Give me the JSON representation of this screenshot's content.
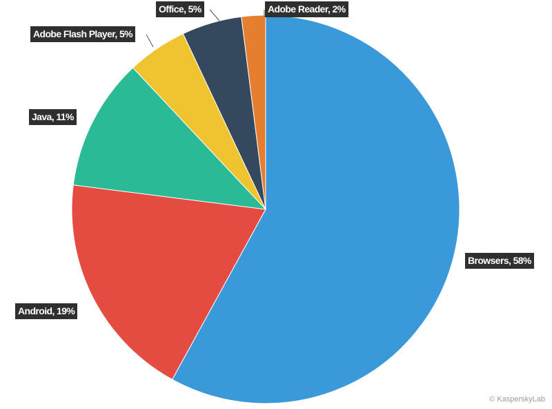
{
  "chart_data": {
    "type": "pie",
    "values": [
      58,
      19,
      11,
      5,
      5,
      2
    ],
    "value_labels": [
      "Browsers, 58%",
      "Android, 19%",
      "Java, 11%",
      "Adobe Flash Player, 5%",
      "Office, 5%",
      "Adobe Reader, 2%"
    ],
    "colors": [
      "#3a99d8",
      "#e44c41",
      "#2bba96",
      "#f0c330",
      "#34495e",
      "#e67e30"
    ],
    "credit": "© KasperskyLab"
  }
}
